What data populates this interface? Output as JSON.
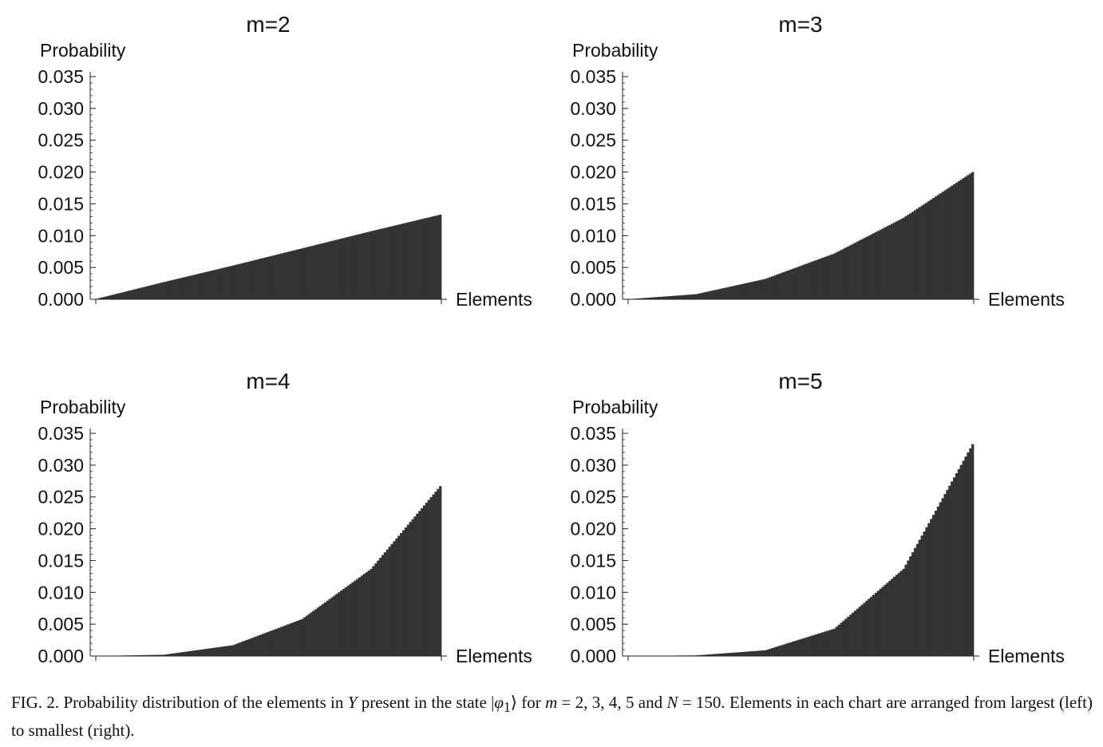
{
  "figure": {
    "caption_parts": {
      "p1": "FIG. 2. Probability distribution of the elements in ",
      "Y": "Y",
      "p2": " present in the state |",
      "phi": "φ",
      "sub1": "1",
      "p3": "⟩ for ",
      "m": "m",
      "p4": " = 2, 3, 4, 5 and ",
      "N": "N",
      "p5": " = 150. Elements in each chart are arranged from largest (left) to smallest (right)."
    }
  },
  "colors": {
    "fill": "#333333",
    "axis": "#222222",
    "background": "#ffffff"
  },
  "chart_data": [
    {
      "type": "bar",
      "title": "m=2",
      "ylabel": "Probability",
      "xlabel": "Elements",
      "yticks": [
        "0.000",
        "0.005",
        "0.010",
        "0.015",
        "0.020",
        "0.025",
        "0.030",
        "0.035"
      ],
      "ylim": [
        0,
        0.0355
      ],
      "n_elements": 150,
      "values": [
        0.0,
        0.0027,
        0.0053,
        0.008,
        0.0107,
        0.0133
      ],
      "value_x": [
        0,
        30,
        60,
        90,
        120,
        150
      ],
      "grid": false
    },
    {
      "type": "bar",
      "title": "m=3",
      "ylabel": "Probability",
      "xlabel": "Elements",
      "yticks": [
        "0.000",
        "0.005",
        "0.010",
        "0.015",
        "0.020",
        "0.025",
        "0.030",
        "0.035"
      ],
      "ylim": [
        0,
        0.0355
      ],
      "n_elements": 150,
      "values": [
        0.0,
        0.0008,
        0.0032,
        0.0072,
        0.0128,
        0.02
      ],
      "value_x": [
        0,
        30,
        60,
        90,
        120,
        150
      ],
      "grid": false
    },
    {
      "type": "bar",
      "title": "m=4",
      "ylabel": "Probability",
      "xlabel": "Elements",
      "yticks": [
        "0.000",
        "0.005",
        "0.010",
        "0.015",
        "0.020",
        "0.025",
        "0.030",
        "0.035"
      ],
      "ylim": [
        0,
        0.0355
      ],
      "n_elements": 150,
      "values": [
        0.0,
        0.0002,
        0.0017,
        0.0058,
        0.0137,
        0.0267
      ],
      "value_x": [
        0,
        30,
        60,
        90,
        120,
        150
      ],
      "grid": false
    },
    {
      "type": "bar",
      "title": "m=5",
      "ylabel": "Probability",
      "xlabel": "Elements",
      "yticks": [
        "0.000",
        "0.005",
        "0.010",
        "0.015",
        "0.020",
        "0.025",
        "0.030",
        "0.035"
      ],
      "ylim": [
        0,
        0.0355
      ],
      "n_elements": 150,
      "values": [
        0.0,
        0.0001,
        0.0009,
        0.0043,
        0.0137,
        0.0333
      ],
      "value_x": [
        0,
        30,
        60,
        90,
        120,
        150
      ],
      "grid": false
    }
  ]
}
